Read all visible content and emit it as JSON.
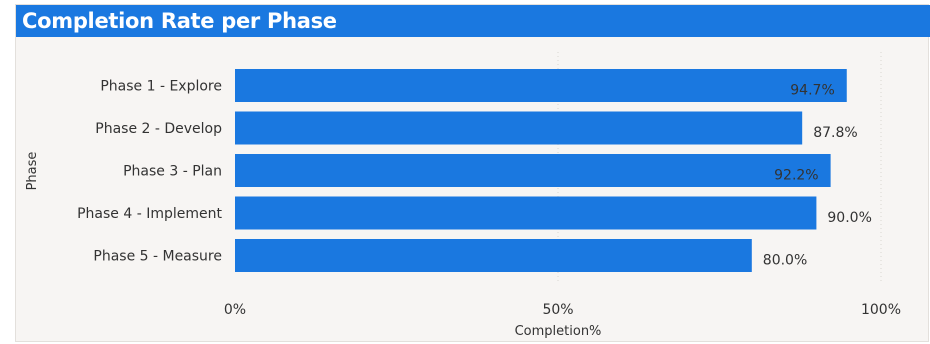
{
  "title": "Completion Rate per Phase",
  "colors": {
    "title_bar": "#1a78e0",
    "bar": "#1a78e0",
    "background": "#f7f5f3",
    "text": "#333333",
    "gridline": "#d9d6d2"
  },
  "chart_data": {
    "type": "bar",
    "orientation": "horizontal",
    "title": "Completion Rate per Phase",
    "categories": [
      "Phase 1 - Explore",
      "Phase 2 - Develop",
      "Phase 3 - Plan",
      "Phase 4 - Implement",
      "Phase 5 - Measure"
    ],
    "values": [
      94.7,
      87.8,
      92.2,
      90.0,
      80.0
    ],
    "data_labels": [
      "94.7%",
      "87.8%",
      "92.2%",
      "90.0%",
      "80.0%"
    ],
    "xlabel": "Completion%",
    "ylabel": "Phase",
    "xlim": [
      0,
      100
    ],
    "x_ticks": [
      0,
      50,
      100
    ],
    "x_tick_labels": [
      "0%",
      "50%",
      "100%"
    ],
    "grid": "vertical dotted",
    "legend": "none"
  }
}
